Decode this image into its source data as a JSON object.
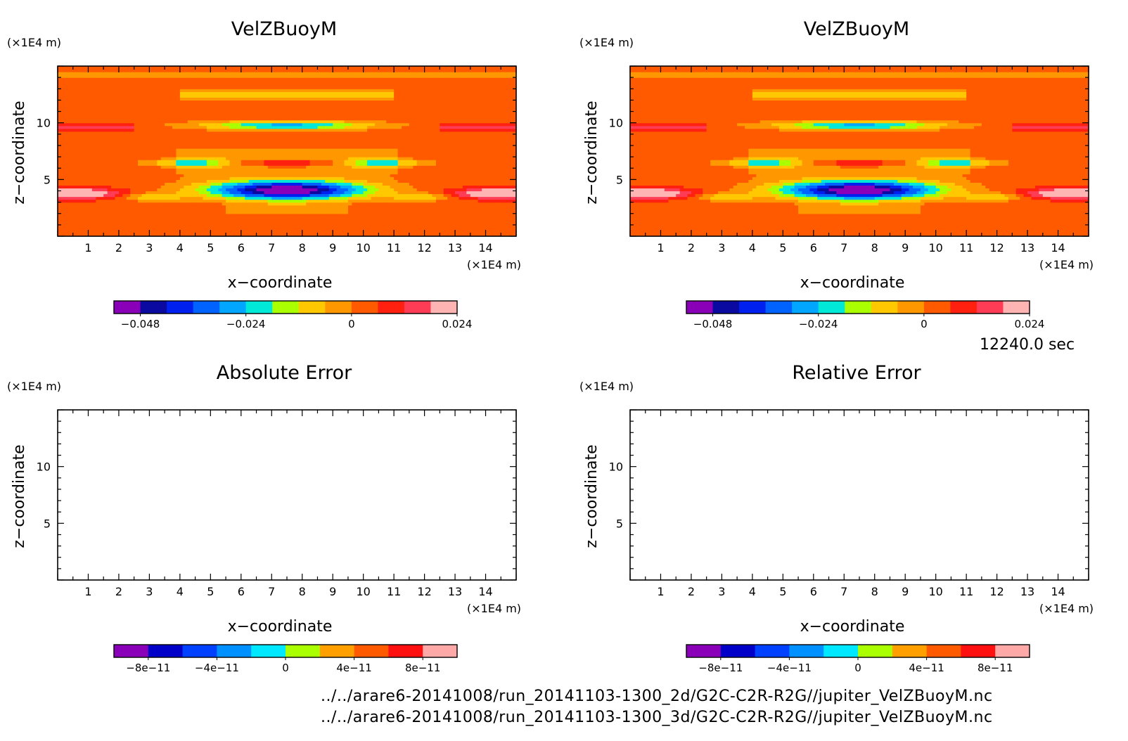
{
  "chart_data": [
    {
      "type": "heatmap",
      "title": "VelZBuoyM",
      "xlabel": "x−coordinate",
      "ylabel": "z−coordinate",
      "x_unit": "(×1E4 m)",
      "y_unit": "(×1E4 m)",
      "x_ticks": [
        "1",
        "2",
        "3",
        "4",
        "5",
        "6",
        "7",
        "8",
        "9",
        "10",
        "11",
        "12",
        "13",
        "14"
      ],
      "y_ticks": [
        "5",
        "10"
      ],
      "xlim": [
        0,
        15
      ],
      "ylim": [
        0,
        15
      ],
      "colorbar": {
        "levels": [
          -0.054,
          -0.048,
          -0.042,
          -0.036,
          -0.03,
          -0.024,
          -0.018,
          -0.012,
          -0.006,
          0,
          0.006,
          0.012,
          0.018,
          0.024,
          0.03,
          0.036
        ],
        "colors": [
          "#8a00b8",
          "#0a0aa0",
          "#0020f0",
          "#0062ff",
          "#00a6ff",
          "#00e8d8",
          "#aaff00",
          "#ffc800",
          "#ff9800",
          "#ff5a00",
          "#ff2010",
          "#ff3c56",
          "#ffb4b4"
        ],
        "tick_labels": [
          "−0.048",
          "−0.024",
          "0",
          "0.024"
        ]
      }
    },
    {
      "type": "heatmap",
      "title": "VelZBuoyM",
      "xlabel": "x−coordinate",
      "ylabel": "z−coordinate",
      "x_unit": "(×1E4 m)",
      "y_unit": "(×1E4 m)",
      "x_ticks": [
        "1",
        "2",
        "3",
        "4",
        "5",
        "6",
        "7",
        "8",
        "9",
        "10",
        "11",
        "12",
        "13",
        "14"
      ],
      "y_ticks": [
        "5",
        "10"
      ],
      "xlim": [
        0,
        15
      ],
      "ylim": [
        0,
        15
      ],
      "colorbar": {
        "levels": [
          -0.054,
          -0.048,
          -0.042,
          -0.036,
          -0.03,
          -0.024,
          -0.018,
          -0.012,
          -0.006,
          0,
          0.006,
          0.012,
          0.018,
          0.024,
          0.03,
          0.036
        ],
        "colors": [
          "#8a00b8",
          "#0a0aa0",
          "#0020f0",
          "#0062ff",
          "#00a6ff",
          "#00e8d8",
          "#aaff00",
          "#ffc800",
          "#ff9800",
          "#ff5a00",
          "#ff2010",
          "#ff3c56",
          "#ffb4b4"
        ],
        "tick_labels": [
          "−0.048",
          "−0.024",
          "0",
          "0.024"
        ]
      }
    },
    {
      "type": "heatmap",
      "title": "Absolute Error",
      "xlabel": "x−coordinate",
      "ylabel": "z−coordinate",
      "x_unit": "(×1E4 m)",
      "y_unit": "(×1E4 m)",
      "x_ticks": [
        "1",
        "2",
        "3",
        "4",
        "5",
        "6",
        "7",
        "8",
        "9",
        "10",
        "11",
        "12",
        "13",
        "14"
      ],
      "y_ticks": [
        "5",
        "10"
      ],
      "xlim": [
        0,
        15
      ],
      "ylim": [
        0,
        15
      ],
      "field": "empty",
      "colorbar": {
        "colors": [
          "#8a00b8",
          "#0000c8",
          "#0040ff",
          "#0090ff",
          "#00e8ff",
          "#aaff00",
          "#ffa000",
          "#ff5a00",
          "#ff1010",
          "#ffa8a8"
        ],
        "tick_labels": [
          "−8e−11",
          "−4e−11",
          "0",
          "4e−11",
          "8e−11"
        ]
      }
    },
    {
      "type": "heatmap",
      "title": "Relative Error",
      "xlabel": "x−coordinate",
      "ylabel": "z−coordinate",
      "x_unit": "(×1E4 m)",
      "y_unit": "(×1E4 m)",
      "x_ticks": [
        "1",
        "2",
        "3",
        "4",
        "5",
        "6",
        "7",
        "8",
        "9",
        "10",
        "11",
        "12",
        "13",
        "14"
      ],
      "y_ticks": [
        "5",
        "10"
      ],
      "xlim": [
        0,
        15
      ],
      "ylim": [
        0,
        15
      ],
      "field": "empty",
      "colorbar": {
        "colors": [
          "#8a00b8",
          "#0000c8",
          "#0040ff",
          "#0090ff",
          "#00e8ff",
          "#aaff00",
          "#ffa000",
          "#ff5a00",
          "#ff1010",
          "#ffa8a8"
        ],
        "tick_labels": [
          "−8e−11",
          "−4e−11",
          "0",
          "4e−11",
          "8e−11"
        ]
      }
    }
  ],
  "time_label": "12240.0 sec",
  "file_paths": [
    "../../arare6-20141008/run_20141103-1300_2d/G2C-C2R-R2G//jupiter_VelZBuoyM.nc",
    "../../arare6-20141008/run_20141103-1300_3d/G2C-C2R-R2G//jupiter_VelZBuoyM.nc"
  ]
}
